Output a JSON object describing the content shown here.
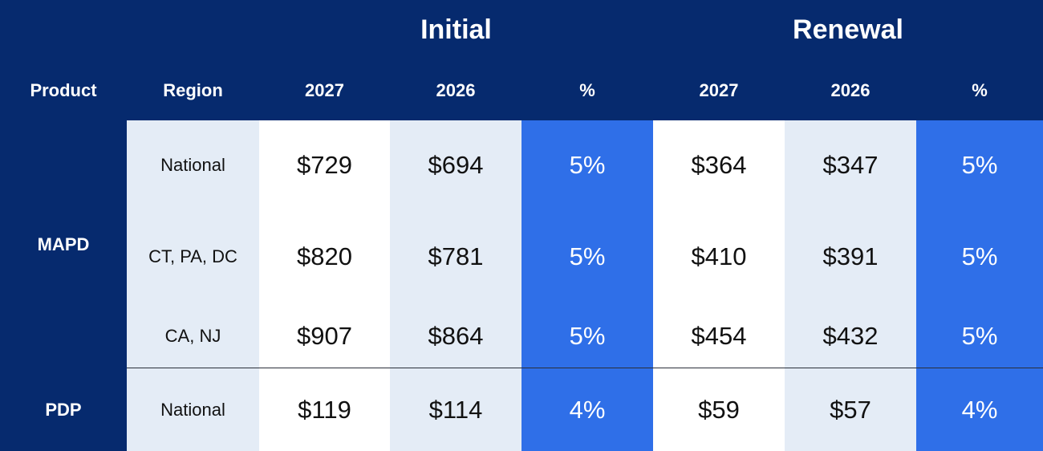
{
  "table": {
    "groups": [
      "Initial",
      "Renewal"
    ],
    "columns": [
      "Product",
      "Region",
      "2027",
      "2026",
      "%",
      "2027",
      "2026",
      "%"
    ],
    "products": [
      {
        "name": "MAPD",
        "rows": [
          [
            "National",
            "$729",
            "$694",
            "5%",
            "$364",
            "$347",
            "5%"
          ],
          [
            "CT, PA, DC",
            "$820",
            "$781",
            "5%",
            "$410",
            "$391",
            "5%"
          ],
          [
            "CA, NJ",
            "$907",
            "$864",
            "5%",
            "$454",
            "$432",
            "5%"
          ]
        ]
      },
      {
        "name": "PDP",
        "rows": [
          [
            "National",
            "$119",
            "$114",
            "4%",
            "$59",
            "$57",
            "4%"
          ]
        ]
      }
    ]
  }
}
